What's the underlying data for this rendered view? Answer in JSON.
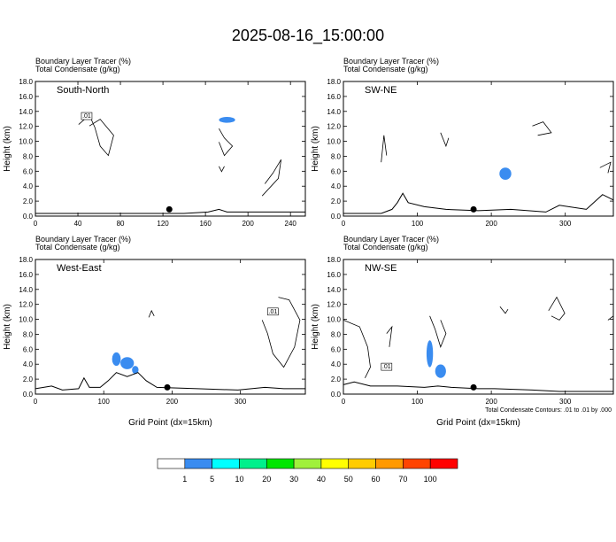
{
  "title": "2025-08-16_15:00:00",
  "variable_labels": [
    "Boundary Layer Tracer   (%)",
    "Total Condensate   (g/kg)"
  ],
  "y_axis_label": "Height (km)",
  "x_axis_label": "Grid Point (dx=15km)",
  "contour_note": "Total Condensate Contours: .01 to .01 by .000",
  "colorbar": {
    "labels": [
      "1",
      "5",
      "10",
      "20",
      "30",
      "40",
      "50",
      "60",
      "70",
      "100"
    ],
    "colors": [
      "#ffffff",
      "#3a8cf0",
      "#00ffff",
      "#00f08c",
      "#00e600",
      "#a0f03c",
      "#ffff00",
      "#ffcc00",
      "#ff9900",
      "#ff4400",
      "#ff0000"
    ]
  },
  "chart_data": [
    {
      "type": "contour",
      "panel_label": "South-North",
      "ylim": [
        0,
        18
      ],
      "yticks": [
        "0.0",
        "2.0",
        "4.0",
        "6.0",
        "8.0",
        "10.0",
        "12.0",
        "14.0",
        "16.0",
        "18.0"
      ],
      "xlim": [
        0,
        254
      ],
      "xticks": [
        "0",
        "40",
        "80",
        "120",
        "160",
        "200",
        "240"
      ],
      "marker_x": 126,
      "contour_label": ".01"
    },
    {
      "type": "contour",
      "panel_label": "SW-NE",
      "ylim": [
        0,
        18
      ],
      "yticks": [
        "0.0",
        "2.0",
        "4.0",
        "6.0",
        "8.0",
        "10.0",
        "12.0",
        "14.0",
        "16.0",
        "18.0"
      ],
      "xlim": [
        0,
        365
      ],
      "xticks": [
        "0",
        "100",
        "200",
        "300"
      ],
      "marker_x": 176
    },
    {
      "type": "contour",
      "panel_label": "West-East",
      "ylim": [
        0,
        18
      ],
      "yticks": [
        "0.0",
        "2.0",
        "4.0",
        "6.0",
        "8.0",
        "10.0",
        "12.0",
        "14.0",
        "16.0",
        "18.0"
      ],
      "xlim": [
        0,
        395
      ],
      "xticks": [
        "0",
        "100",
        "200",
        "300"
      ],
      "marker_x": 193,
      "contour_label": ".01"
    },
    {
      "type": "contour",
      "panel_label": "NW-SE",
      "ylim": [
        0,
        18
      ],
      "yticks": [
        "0.0",
        "2.0",
        "4.0",
        "6.0",
        "8.0",
        "10.0",
        "12.0",
        "14.0",
        "16.0",
        "18.0"
      ],
      "xlim": [
        0,
        365
      ],
      "xticks": [
        "0",
        "100",
        "200",
        "300"
      ],
      "marker_x": 176,
      "contour_label": ".01"
    }
  ]
}
